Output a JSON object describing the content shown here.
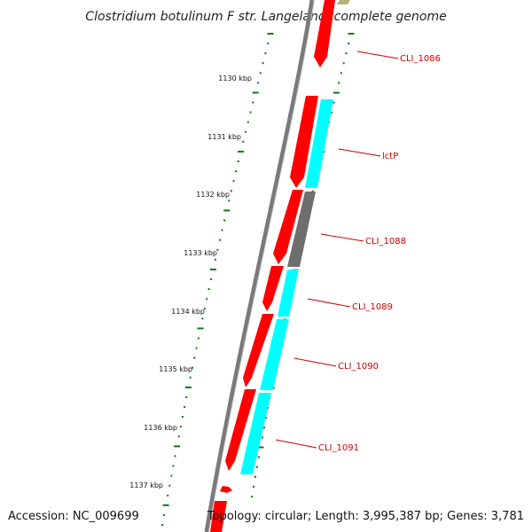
{
  "title": "Clostridium botulinum F str. Langeland, complete genome",
  "footer": {
    "accession": "Accession: NC_009699",
    "summary": "Topology: circular; Length: 3,995,387 bp; Genes: 3,781"
  },
  "scale_labels": [
    "1130 kbp",
    "1131 kbp",
    "1132 kbp",
    "1133 kbp",
    "1134 kbp",
    "1135 kbp",
    "1136 kbp",
    "1137 kbp"
  ],
  "gene_labels": [
    "CLI_1086",
    "lctP",
    "CLI_1088",
    "CLI_1089",
    "CLI_1090",
    "CLI_1091"
  ],
  "colors": {
    "cds": "#ff0000",
    "gene": "#00ffff",
    "pseudo": "#6e6e6e",
    "ticks": "#0a7a0a",
    "label": "#cc0000",
    "backbone": "#7a7a7a",
    "rna_top": "#b4b478"
  }
}
